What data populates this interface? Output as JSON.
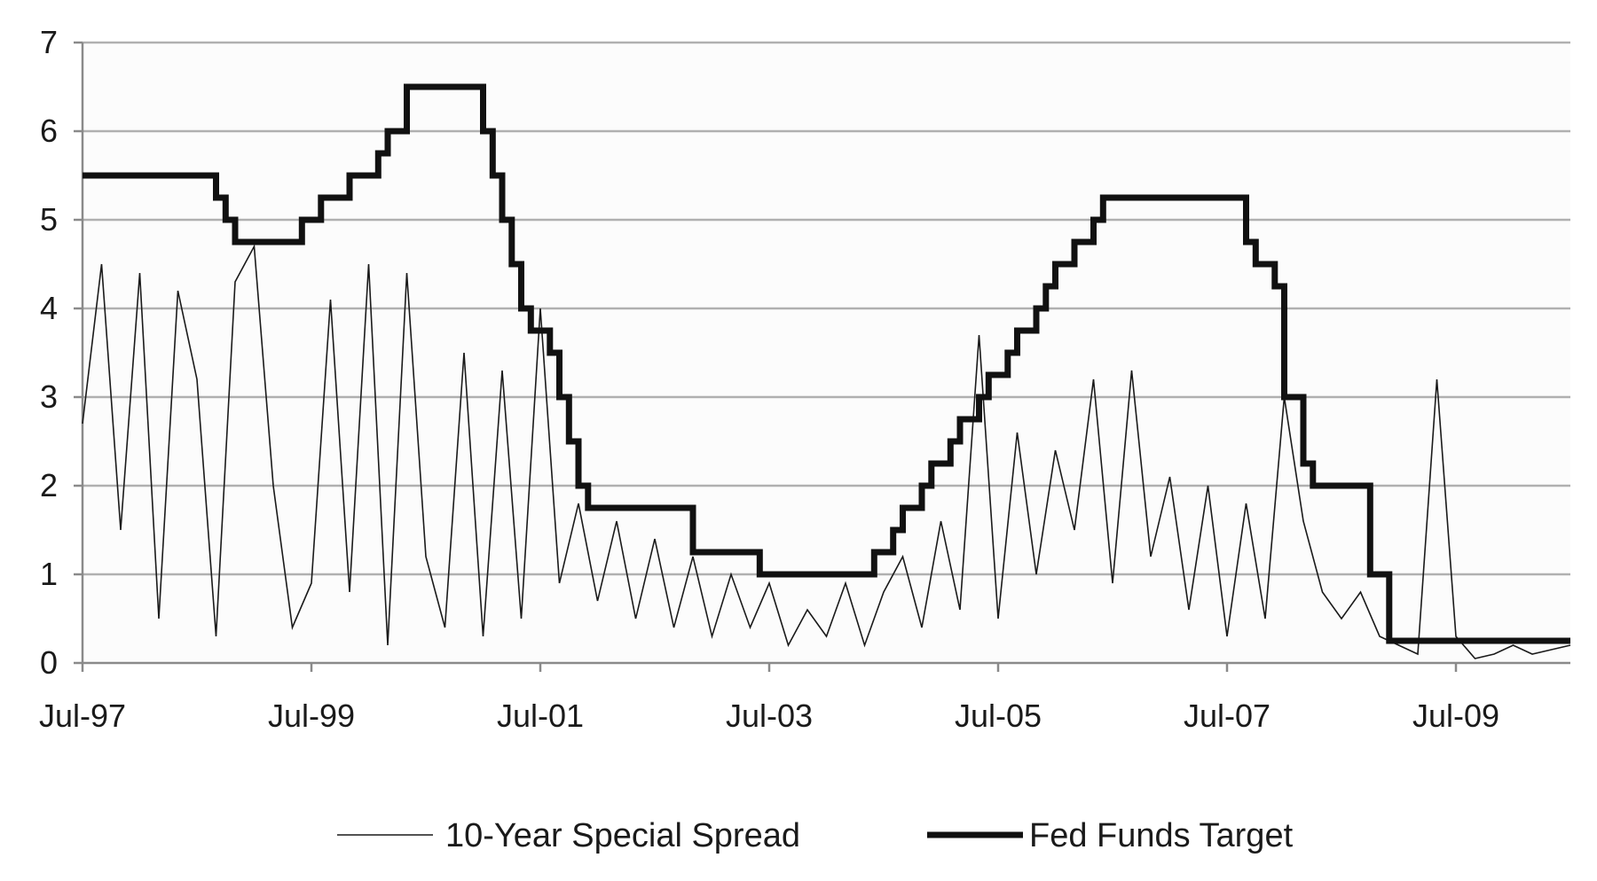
{
  "chart_data": {
    "type": "line",
    "title": "",
    "xlabel": "",
    "ylabel": "",
    "ylim": [
      0,
      7
    ],
    "y_ticks": [
      0,
      1,
      2,
      3,
      4,
      5,
      6,
      7
    ],
    "y_tick_labels": [
      "0",
      "1",
      "2",
      "3",
      "4",
      "5",
      "6",
      "7"
    ],
    "x_range": [
      "1997-07",
      "2010-07"
    ],
    "x_ticks": [
      "1997-07",
      "1999-07",
      "2001-07",
      "2003-07",
      "2005-07",
      "2007-07",
      "2009-07"
    ],
    "x_tick_labels": [
      "Jul-97",
      "Jul-99",
      "Jul-01",
      "Jul-03",
      "Jul-05",
      "Jul-07",
      "Jul-09"
    ],
    "grid": {
      "horizontal": true,
      "vertical": false
    },
    "legend_position": "bottom",
    "background": "#fcfcfc",
    "series": [
      {
        "name": "10-Year Special Spread",
        "color": "#1a1a1a",
        "line_style": "thin",
        "x": [
          "1997-07",
          "1997-09",
          "1997-11",
          "1998-01",
          "1998-03",
          "1998-05",
          "1998-07",
          "1998-09",
          "1998-11",
          "1999-01",
          "1999-03",
          "1999-05",
          "1999-07",
          "1999-09",
          "1999-11",
          "2000-01",
          "2000-03",
          "2000-05",
          "2000-07",
          "2000-09",
          "2000-11",
          "2001-01",
          "2001-03",
          "2001-05",
          "2001-07",
          "2001-09",
          "2001-11",
          "2002-01",
          "2002-03",
          "2002-05",
          "2002-07",
          "2002-09",
          "2002-11",
          "2003-01",
          "2003-03",
          "2003-05",
          "2003-07",
          "2003-09",
          "2003-11",
          "2004-01",
          "2004-03",
          "2004-05",
          "2004-07",
          "2004-09",
          "2004-11",
          "2005-01",
          "2005-03",
          "2005-05",
          "2005-07",
          "2005-09",
          "2005-11",
          "2006-01",
          "2006-03",
          "2006-05",
          "2006-07",
          "2006-09",
          "2006-11",
          "2007-01",
          "2007-03",
          "2007-05",
          "2007-07",
          "2007-09",
          "2007-11",
          "2008-01",
          "2008-03",
          "2008-05",
          "2008-07",
          "2008-09",
          "2008-11",
          "2009-01",
          "2009-03",
          "2009-05",
          "2009-07",
          "2009-09",
          "2009-11",
          "2010-01",
          "2010-03",
          "2010-05",
          "2010-07"
        ],
        "y": [
          2.7,
          4.5,
          1.5,
          4.4,
          0.5,
          4.2,
          3.2,
          0.3,
          4.3,
          4.7,
          2.0,
          0.4,
          0.9,
          4.1,
          0.8,
          4.5,
          0.2,
          4.4,
          1.2,
          0.4,
          3.5,
          0.3,
          3.3,
          0.5,
          4.0,
          0.9,
          1.8,
          0.7,
          1.6,
          0.5,
          1.4,
          0.4,
          1.2,
          0.3,
          1.0,
          0.4,
          0.9,
          0.2,
          0.6,
          0.3,
          0.9,
          0.2,
          0.8,
          1.2,
          0.4,
          1.6,
          0.6,
          3.7,
          0.5,
          2.6,
          1.0,
          2.4,
          1.5,
          3.2,
          0.9,
          3.3,
          1.2,
          2.1,
          0.6,
          2.0,
          0.3,
          1.8,
          0.5,
          3.0,
          1.6,
          0.8,
          0.5,
          0.8,
          0.3,
          0.2,
          0.1,
          3.2,
          0.3,
          0.05,
          0.1,
          0.2,
          0.1,
          0.15,
          0.2
        ]
      },
      {
        "name": "Fed Funds Target",
        "color": "#111111",
        "line_style": "thick step",
        "x": [
          "1997-07",
          "1998-09",
          "1998-10",
          "1998-11",
          "1999-06",
          "1999-08",
          "1999-11",
          "2000-02",
          "2000-03",
          "2000-05",
          "2001-01",
          "2001-02",
          "2001-03",
          "2001-04",
          "2001-05",
          "2001-06",
          "2001-08",
          "2001-09",
          "2001-10",
          "2001-11",
          "2001-12",
          "2002-11",
          "2003-06",
          "2004-06",
          "2004-08",
          "2004-09",
          "2004-11",
          "2004-12",
          "2005-02",
          "2005-03",
          "2005-05",
          "2005-06",
          "2005-08",
          "2005-09",
          "2005-11",
          "2005-12",
          "2006-01",
          "2006-03",
          "2006-05",
          "2006-06",
          "2007-09",
          "2007-10",
          "2007-12",
          "2008-01",
          "2008-01",
          "2008-03",
          "2008-04",
          "2008-10",
          "2008-10",
          "2008-12",
          "2010-07"
        ],
        "y": [
          5.5,
          5.25,
          5.0,
          4.75,
          5.0,
          5.25,
          5.5,
          5.75,
          6.0,
          6.5,
          6.0,
          5.5,
          5.0,
          4.5,
          4.0,
          3.75,
          3.5,
          3.0,
          2.5,
          2.0,
          1.75,
          1.25,
          1.0,
          1.25,
          1.5,
          1.75,
          2.0,
          2.25,
          2.5,
          2.75,
          3.0,
          3.25,
          3.5,
          3.75,
          4.0,
          4.25,
          4.5,
          4.75,
          5.0,
          5.25,
          4.75,
          4.5,
          4.25,
          3.5,
          3.0,
          2.25,
          2.0,
          1.5,
          1.0,
          0.25,
          0.25
        ]
      }
    ]
  }
}
